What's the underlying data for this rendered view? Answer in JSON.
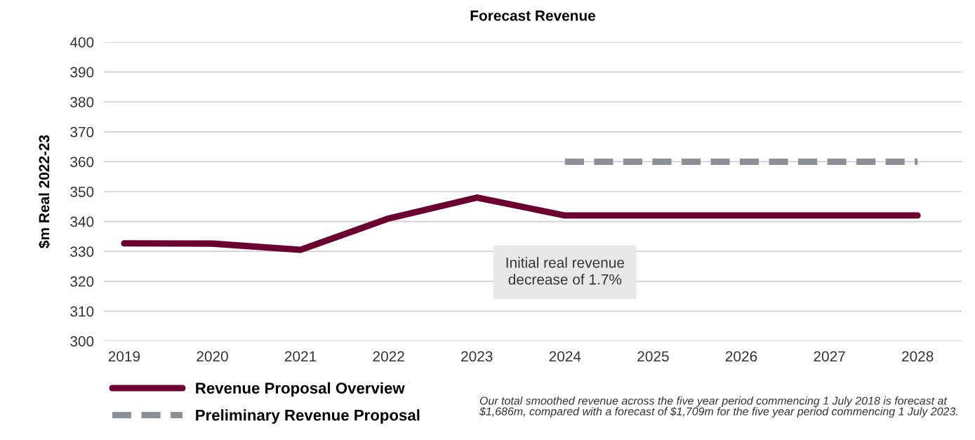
{
  "chart_data": {
    "type": "line",
    "title": "Forecast Revenue",
    "ylabel": "$m Real 2022-23",
    "categories": [
      "2019",
      "2020",
      "2021",
      "2022",
      "2023",
      "2024",
      "2025",
      "2026",
      "2027",
      "2028"
    ],
    "series": [
      {
        "name": "Revenue Proposal Overview",
        "color": "#6b0030",
        "line_style": "solid",
        "values": [
          332.7,
          332.6,
          330.5,
          341,
          348,
          342,
          342,
          342,
          342,
          342
        ]
      },
      {
        "name": "Preliminary Revenue Proposal",
        "color": "#8c8f94",
        "line_style": "dashed",
        "values": [
          null,
          null,
          null,
          null,
          null,
          360,
          360,
          360,
          360,
          360
        ]
      }
    ],
    "ylim": [
      300,
      400
    ],
    "yticks": [
      300,
      310,
      320,
      330,
      340,
      350,
      360,
      370,
      380,
      390,
      400
    ],
    "grid": "y",
    "legend": "bottom left",
    "marker": "none",
    "annotations": [
      "Initial real revenue\ndecrease of 1.7%",
      "Our total smoothed revenue across the five year period commencing 1 July 2018 is forecast at $1,686m, compared with a forecast of $1,709m for the five year period commencing 1 July 2023."
    ]
  }
}
